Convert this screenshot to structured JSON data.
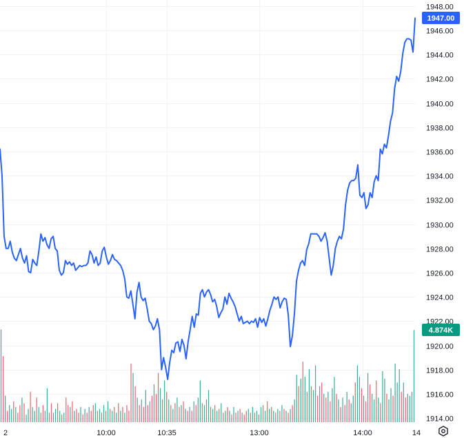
{
  "chart_data": {
    "type": "line",
    "title": "",
    "xlabel": "",
    "ylabel": "",
    "ylim": [
      1913.5,
      1948.5
    ],
    "y_ticks": [
      1914,
      1916,
      1918,
      1920,
      1922,
      1924,
      1926,
      1928,
      1930,
      1932,
      1934,
      1936,
      1938,
      1940,
      1942,
      1944,
      1946,
      1948
    ],
    "x_tick_labels": [
      "2",
      "10:00",
      "10:35",
      "13:00",
      "14:00",
      "14"
    ],
    "grid": true,
    "price_series": {
      "color": "#2962ff",
      "values": [
        1936.2,
        1934.0,
        1929.0,
        1928.0,
        1928.0,
        1928.6,
        1927.7,
        1927.2,
        1927.0,
        1927.5,
        1928.0,
        1927.2,
        1926.8,
        1927.4,
        1926.1,
        1926.0,
        1927.1,
        1926.8,
        1926.6,
        1927.8,
        1929.2,
        1928.6,
        1928.9,
        1928.3,
        1928.0,
        1928.8,
        1929.0,
        1928.0,
        1927.8,
        1926.2,
        1925.8,
        1926.0,
        1927.0,
        1926.7,
        1926.9,
        1926.6,
        1926.8,
        1926.2,
        1926.4,
        1926.6,
        1926.5,
        1926.6,
        1926.6,
        1926.8,
        1927.8,
        1927.5,
        1926.8,
        1927.3,
        1926.6,
        1926.8,
        1927.8,
        1928.1,
        1927.3,
        1926.7,
        1927.0,
        1927.5,
        1927.1,
        1927.0,
        1926.8,
        1926.6,
        1926.2,
        1925.5,
        1924.0,
        1923.9,
        1924.5,
        1923.4,
        1922.2,
        1924.4,
        1925.2,
        1924.0,
        1923.7,
        1923.9,
        1923.0,
        1922.0,
        1921.8,
        1921.3,
        1921.6,
        1922.2,
        1921.3,
        1918.0,
        1919.0,
        1918.2,
        1917.2,
        1918.6,
        1919.6,
        1919.4,
        1920.2,
        1920.3,
        1919.5,
        1920.5,
        1920.0,
        1918.9,
        1920.3,
        1921.3,
        1922.4,
        1921.5,
        1922.6,
        1922.5,
        1924.3,
        1924.6,
        1924.0,
        1924.4,
        1924.6,
        1924.2,
        1923.6,
        1923.8,
        1923.2,
        1922.3,
        1922.7,
        1923.0,
        1924.0,
        1923.4,
        1924.3,
        1923.9,
        1923.6,
        1923.2,
        1922.6,
        1922.0,
        1922.4,
        1921.8,
        1921.9,
        1922.0,
        1921.8,
        1922.0,
        1921.9,
        1922.2,
        1921.5,
        1922.3,
        1921.9,
        1922.2,
        1921.6,
        1922.2,
        1922.9,
        1923.4,
        1924.0,
        1923.8,
        1924.0,
        1923.1,
        1923.6,
        1923.9,
        1923.8,
        1922.5,
        1919.9,
        1920.8,
        1922.6,
        1925.3,
        1926.2,
        1926.8,
        1927.0,
        1926.6,
        1927.9,
        1928.4,
        1929.2,
        1929.2,
        1929.2,
        1929.2,
        1929.0,
        1928.6,
        1928.9,
        1929.3,
        1928.6,
        1927.2,
        1925.8,
        1926.6,
        1928.0,
        1928.6,
        1929.0,
        1928.8,
        1929.6,
        1931.6,
        1932.8,
        1933.4,
        1933.6,
        1933.6,
        1933.8,
        1934.9,
        1932.4,
        1932.2,
        1932.6,
        1931.3,
        1931.6,
        1932.6,
        1932.2,
        1933.5,
        1934.0,
        1933.6,
        1936.2,
        1935.8,
        1936.6,
        1936.3,
        1937.3,
        1938.5,
        1939.2,
        1941.2,
        1942.2,
        1941.8,
        1942.6,
        1944.1,
        1945.0,
        1945.3,
        1945.3,
        1945.2,
        1944.2,
        1947.0
      ]
    },
    "price_badge": {
      "label": "1947.00",
      "value": 1947.0,
      "color": "#2962ff"
    },
    "volume_badge": {
      "label": "4.874K",
      "value": 4.874,
      "color": "#089981"
    },
    "volume_series": {
      "up_color": "#089981",
      "down_color": "#f23645",
      "bars": [
        [
          4.9,
          1
        ],
        [
          3.5,
          0
        ],
        [
          1.4,
          1
        ],
        [
          0.6,
          0
        ],
        [
          0.9,
          1
        ],
        [
          0.7,
          1
        ],
        [
          1.1,
          0
        ],
        [
          0.8,
          1
        ],
        [
          0.5,
          0
        ],
        [
          0.9,
          0
        ],
        [
          1.3,
          1
        ],
        [
          1.0,
          0
        ],
        [
          0.4,
          1
        ],
        [
          0.7,
          1
        ],
        [
          1.6,
          0
        ],
        [
          0.8,
          1
        ],
        [
          0.6,
          1
        ],
        [
          1.3,
          0
        ],
        [
          0.8,
          1
        ],
        [
          0.5,
          0
        ],
        [
          0.9,
          0
        ],
        [
          0.6,
          1
        ],
        [
          1.8,
          1
        ],
        [
          0.5,
          0
        ],
        [
          1.0,
          0
        ],
        [
          0.5,
          1
        ],
        [
          0.7,
          1
        ],
        [
          1.0,
          0
        ],
        [
          0.6,
          1
        ],
        [
          0.4,
          0
        ],
        [
          0.5,
          1
        ],
        [
          1.3,
          0
        ],
        [
          0.9,
          0
        ],
        [
          0.8,
          1
        ],
        [
          1.1,
          0
        ],
        [
          0.6,
          1
        ],
        [
          0.7,
          0
        ],
        [
          0.5,
          0
        ],
        [
          0.8,
          1
        ],
        [
          0.4,
          0
        ],
        [
          0.7,
          1
        ],
        [
          0.5,
          0
        ],
        [
          0.8,
          1
        ],
        [
          0.6,
          0
        ],
        [
          0.9,
          0
        ],
        [
          1.0,
          1
        ],
        [
          0.6,
          0
        ],
        [
          0.7,
          1
        ],
        [
          0.5,
          0
        ],
        [
          0.9,
          1
        ],
        [
          0.6,
          0
        ],
        [
          1.1,
          1
        ],
        [
          0.7,
          0
        ],
        [
          0.6,
          1
        ],
        [
          0.8,
          0
        ],
        [
          0.5,
          1
        ],
        [
          1.0,
          0
        ],
        [
          0.6,
          1
        ],
        [
          0.8,
          0
        ],
        [
          0.5,
          1
        ],
        [
          0.9,
          0
        ],
        [
          0.6,
          0
        ],
        [
          3.1,
          0
        ],
        [
          2.6,
          1
        ],
        [
          1.9,
          0
        ],
        [
          1.3,
          1
        ],
        [
          0.9,
          0
        ],
        [
          1.2,
          1
        ],
        [
          0.8,
          0
        ],
        [
          1.7,
          1
        ],
        [
          0.9,
          0
        ],
        [
          1.1,
          1
        ],
        [
          1.4,
          0
        ],
        [
          2.0,
          1
        ],
        [
          1.5,
          0
        ],
        [
          2.6,
          0
        ],
        [
          1.8,
          1
        ],
        [
          1.2,
          0
        ],
        [
          2.2,
          1
        ],
        [
          1.6,
          0
        ],
        [
          1.2,
          1
        ],
        [
          0.9,
          0
        ],
        [
          0.7,
          1
        ],
        [
          1.0,
          0
        ],
        [
          1.3,
          1
        ],
        [
          0.8,
          0
        ],
        [
          0.9,
          1
        ],
        [
          1.1,
          0
        ],
        [
          0.7,
          1
        ],
        [
          0.6,
          0
        ],
        [
          0.8,
          1
        ],
        [
          0.6,
          0
        ],
        [
          1.1,
          1
        ],
        [
          0.9,
          0
        ],
        [
          1.3,
          1
        ],
        [
          2.2,
          1
        ],
        [
          1.0,
          0
        ],
        [
          0.9,
          1
        ],
        [
          1.2,
          0
        ],
        [
          1.7,
          1
        ],
        [
          0.8,
          0
        ],
        [
          0.7,
          1
        ],
        [
          0.9,
          0
        ],
        [
          0.6,
          1
        ],
        [
          0.7,
          0
        ],
        [
          1.0,
          1
        ],
        [
          0.5,
          0
        ],
        [
          0.6,
          1
        ],
        [
          0.8,
          0
        ],
        [
          0.6,
          1
        ],
        [
          0.4,
          0
        ],
        [
          0.8,
          1
        ],
        [
          0.5,
          0
        ],
        [
          0.6,
          1
        ],
        [
          0.7,
          0
        ],
        [
          0.5,
          1
        ],
        [
          0.4,
          0
        ],
        [
          0.6,
          0
        ],
        [
          0.7,
          1
        ],
        [
          0.5,
          0
        ],
        [
          0.8,
          1
        ],
        [
          0.5,
          0
        ],
        [
          0.6,
          1
        ],
        [
          0.4,
          0
        ],
        [
          0.8,
          1
        ],
        [
          0.9,
          0
        ],
        [
          0.6,
          1
        ],
        [
          1.1,
          0
        ],
        [
          0.7,
          1
        ],
        [
          0.8,
          0
        ],
        [
          0.6,
          1
        ],
        [
          0.5,
          0
        ],
        [
          0.7,
          1
        ],
        [
          0.6,
          0
        ],
        [
          0.9,
          1
        ],
        [
          0.7,
          0
        ],
        [
          0.6,
          1
        ],
        [
          0.5,
          0
        ],
        [
          0.7,
          1
        ],
        [
          0.9,
          0
        ],
        [
          1.2,
          1
        ],
        [
          2.5,
          1
        ],
        [
          1.9,
          0
        ],
        [
          2.3,
          1
        ],
        [
          3.2,
          0
        ],
        [
          2.4,
          1
        ],
        [
          1.6,
          0
        ],
        [
          2.8,
          1
        ],
        [
          1.9,
          0
        ],
        [
          1.7,
          1
        ],
        [
          3.0,
          1
        ],
        [
          1.4,
          0
        ],
        [
          1.9,
          1
        ],
        [
          2.1,
          0
        ],
        [
          1.5,
          1
        ],
        [
          1.3,
          0
        ],
        [
          1.6,
          1
        ],
        [
          1.1,
          0
        ],
        [
          1.8,
          1
        ],
        [
          2.4,
          1
        ],
        [
          1.5,
          0
        ],
        [
          1.2,
          1
        ],
        [
          0.8,
          0
        ],
        [
          1.3,
          1
        ],
        [
          0.9,
          0
        ],
        [
          1.6,
          1
        ],
        [
          1.2,
          0
        ],
        [
          1.0,
          1
        ],
        [
          1.4,
          1
        ],
        [
          2.1,
          0
        ],
        [
          3.0,
          1
        ],
        [
          2.4,
          1
        ],
        [
          1.8,
          0
        ],
        [
          1.4,
          1
        ],
        [
          1.1,
          0
        ],
        [
          2.6,
          1
        ],
        [
          2.0,
          0
        ],
        [
          1.5,
          1
        ],
        [
          1.2,
          1
        ],
        [
          2.2,
          0
        ],
        [
          1.3,
          1
        ],
        [
          1.0,
          0
        ],
        [
          2.7,
          1
        ],
        [
          2.3,
          1
        ],
        [
          1.5,
          0
        ],
        [
          1.2,
          1
        ],
        [
          1.8,
          1
        ],
        [
          1.4,
          0
        ],
        [
          3.1,
          1
        ],
        [
          2.1,
          1
        ],
        [
          2.8,
          1
        ],
        [
          1.6,
          0
        ],
        [
          2.1,
          1
        ],
        [
          1.3,
          0
        ],
        [
          1.5,
          1
        ],
        [
          1.4,
          1
        ],
        [
          1.6,
          1
        ],
        [
          4.874,
          1
        ]
      ]
    }
  },
  "toolbar": {
    "settings_icon": "gear-icon"
  }
}
